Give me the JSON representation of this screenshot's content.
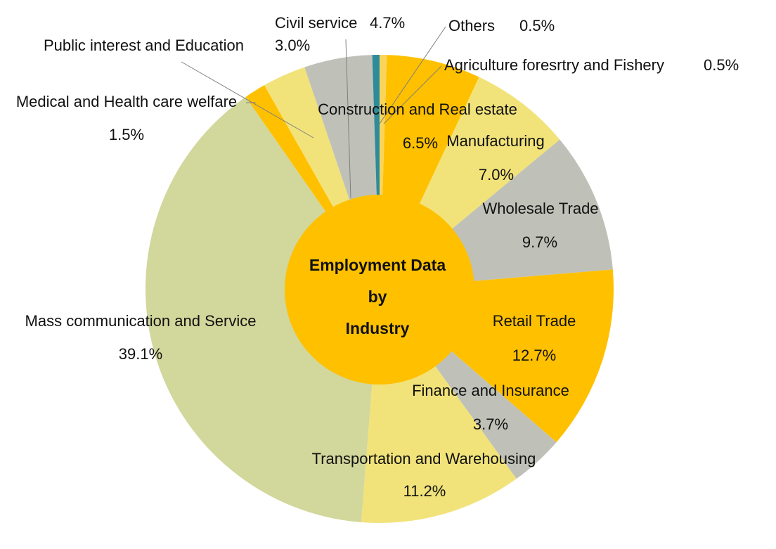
{
  "chart_data": {
    "type": "pie",
    "center_label": [
      "Employment Data",
      "by",
      "Industry"
    ],
    "slices": [
      {
        "name": "Agriculture foresrtry and Fishery",
        "value_label": "0.5%",
        "value": 0.5,
        "color": "#fad55c"
      },
      {
        "name": "Construction and Real estate",
        "value_label": "6.5%",
        "value": 6.5,
        "color": "#ffc000"
      },
      {
        "name": "Manufacturing",
        "value_label": "7.0%",
        "value": 7.0,
        "color": "#f1e37a"
      },
      {
        "name": "Wholesale Trade",
        "value_label": "9.7%",
        "value": 9.7,
        "color": "#bfc1b8"
      },
      {
        "name": "Retail Trade",
        "value_label": "12.7%",
        "value": 12.7,
        "color": "#ffc000"
      },
      {
        "name": "Finance and Insurance",
        "value_label": "3.7%",
        "value": 3.7,
        "color": "#bfc1b8"
      },
      {
        "name": "Transportation and Warehousing",
        "value_label": "11.2%",
        "value": 11.2,
        "color": "#f1e37a"
      },
      {
        "name": "Mass communication and Service",
        "value_label": "39.1%",
        "value": 39.1,
        "color": "#d2d79b"
      },
      {
        "name": "Medical and Health care welfare",
        "value_label": "1.5%",
        "value": 1.5,
        "color": "#ffc000"
      },
      {
        "name": "Public interest and Education",
        "value_label": "3.0%",
        "value": 3.0,
        "color": "#f1e37a"
      },
      {
        "name": "Civil service",
        "value_label": "4.7%",
        "value": 4.7,
        "color": "#bfc1b8"
      },
      {
        "name": "Others",
        "value_label": "0.5%",
        "value": 0.5,
        "color": "#2e8b9a"
      }
    ],
    "center_color": "#ffc000",
    "leader_color": "#7f7f7f"
  }
}
